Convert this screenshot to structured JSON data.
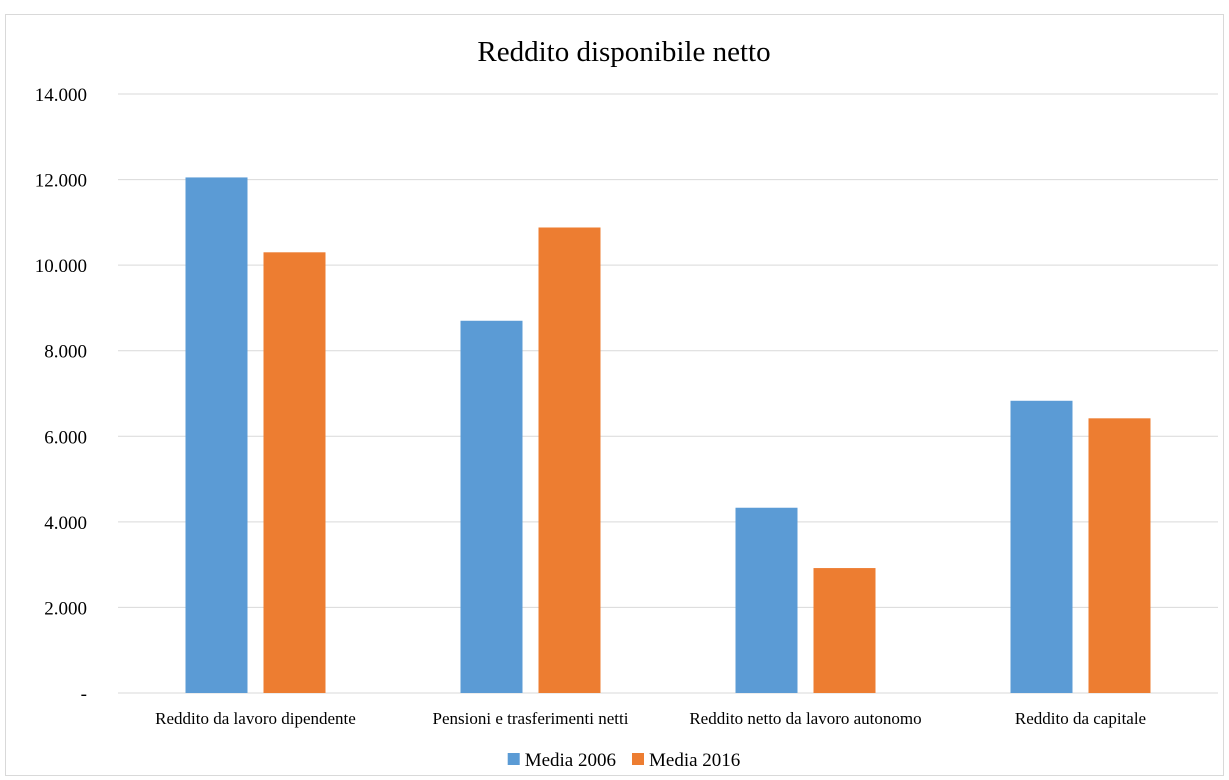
{
  "chart_data": {
    "type": "bar",
    "title": "Reddito disponibile netto",
    "xlabel": "",
    "ylabel": "",
    "categories": [
      "Reddito da lavoro dipendente",
      "Pensioni e trasferimenti netti",
      "Reddito netto da lavoro autonomo",
      "Reddito da capitale"
    ],
    "series": [
      {
        "name": "Media 2006",
        "color": "#5b9bd5",
        "values": [
          12050,
          8700,
          4330,
          6830
        ]
      },
      {
        "name": "Media 2016",
        "color": "#ed7d31",
        "values": [
          10300,
          10880,
          2920,
          6420
        ]
      }
    ],
    "ylim": [
      0,
      14000
    ],
    "yticks": [
      0,
      2000,
      4000,
      6000,
      8000,
      10000,
      12000,
      14000
    ],
    "ytick_labels": [
      "-",
      "2.000",
      "4.000",
      "6.000",
      "8.000",
      "10.000",
      "12.000",
      "14.000"
    ],
    "grid": true,
    "gridline_color": "#d9d9d9",
    "legend_position": "bottom"
  }
}
